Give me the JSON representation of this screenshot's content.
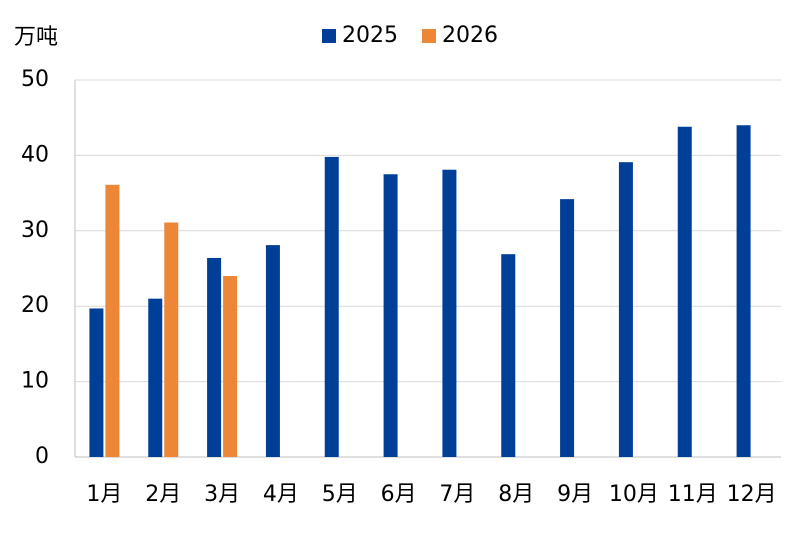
{
  "chart_data": {
    "type": "bar",
    "unit_label": "万吨",
    "categories": [
      "1月",
      "2月",
      "3月",
      "4月",
      "5月",
      "6月",
      "7月",
      "8月",
      "9月",
      "10月",
      "11月",
      "12月"
    ],
    "series": [
      {
        "name": "2025",
        "color": "#003f98",
        "values": [
          19.7,
          21,
          26.4,
          28.1,
          39.8,
          37.5,
          38.1,
          26.9,
          34.2,
          39.1,
          43.8,
          44.0
        ]
      },
      {
        "name": "2026",
        "color": "#ee8638",
        "values": [
          36.1,
          31.1,
          24.0,
          null,
          null,
          null,
          null,
          null,
          null,
          null,
          null,
          null
        ]
      }
    ],
    "ylim": [
      0,
      50
    ],
    "yticks": [
      0,
      10,
      20,
      30,
      40,
      50
    ],
    "grid": true,
    "legend": "top"
  }
}
